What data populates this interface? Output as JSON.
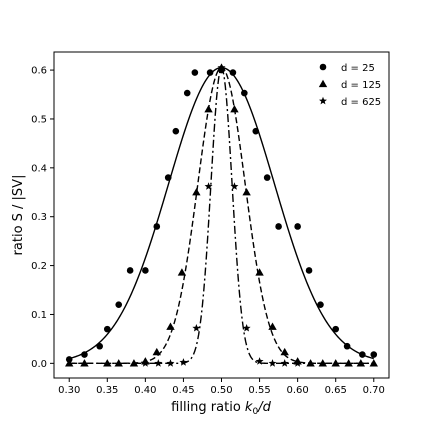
{
  "chart_data": {
    "type": "scatter",
    "xlabel_prefix": "filling ratio ",
    "xlabel_var": "k",
    "xlabel_sub": "0",
    "xlabel_suffix": "/d",
    "ylabel": "ratio S / |SV|",
    "xlim": [
      0.28,
      0.72
    ],
    "ylim": [
      -0.03,
      0.637
    ],
    "x_ticks": [
      0.3,
      0.35,
      0.4,
      0.45,
      0.5,
      0.55,
      0.6,
      0.65,
      0.7
    ],
    "x_tick_labels": [
      "0.30",
      "0.35",
      "0.40",
      "0.45",
      "0.50",
      "0.55",
      "0.60",
      "0.65",
      "0.70"
    ],
    "y_ticks": [
      0.0,
      0.1,
      0.2,
      0.3,
      0.4,
      0.5,
      0.6
    ],
    "y_tick_labels": [
      "0.0",
      "0.1",
      "0.2",
      "0.3",
      "0.4",
      "0.5",
      "0.6"
    ],
    "grid": false,
    "legend_position": "top-right",
    "series": [
      {
        "name": "d = 25",
        "marker": "circle",
        "line_style": "solid",
        "curve_center": 0.5,
        "curve_peak": 0.605,
        "curve_sigma": 0.0696,
        "x": [
          0.3,
          0.32,
          0.34,
          0.35,
          0.365,
          0.38,
          0.4,
          0.415,
          0.43,
          0.44,
          0.455,
          0.465,
          0.485,
          0.5,
          0.515,
          0.53,
          0.545,
          0.56,
          0.575,
          0.6,
          0.615,
          0.63,
          0.65,
          0.665,
          0.685,
          0.7
        ],
        "y": [
          0.008,
          0.018,
          0.035,
          0.07,
          0.12,
          0.19,
          0.19,
          0.28,
          0.38,
          0.475,
          0.553,
          0.595,
          0.595,
          0.6,
          0.595,
          0.553,
          0.475,
          0.38,
          0.28,
          0.28,
          0.19,
          0.12,
          0.07,
          0.035,
          0.018,
          0.018
        ]
      },
      {
        "name": "d = 125",
        "marker": "triangle",
        "line_style": "dashed",
        "curve_center": 0.5,
        "curve_peak": 0.605,
        "curve_sigma": 0.0311,
        "x": [
          0.3,
          0.32,
          0.35,
          0.365,
          0.385,
          0.4,
          0.415,
          0.433,
          0.448,
          0.467,
          0.483,
          0.5,
          0.517,
          0.533,
          0.55,
          0.567,
          0.583,
          0.6,
          0.617,
          0.633,
          0.65,
          0.667,
          0.683,
          0.7
        ],
        "y": [
          0.0,
          0.0,
          0.0,
          0.0,
          0.0,
          0.004,
          0.023,
          0.075,
          0.186,
          0.35,
          0.52,
          0.605,
          0.52,
          0.35,
          0.186,
          0.075,
          0.023,
          0.004,
          0.0,
          0.0,
          0.0,
          0.0,
          0.0,
          0.0
        ]
      },
      {
        "name": "d = 625",
        "marker": "star",
        "line_style": "dashdot",
        "curve_center": 0.5,
        "curve_peak": 0.605,
        "curve_sigma": 0.0139,
        "x": [
          0.4,
          0.417,
          0.433,
          0.45,
          0.467,
          0.483,
          0.5,
          0.517,
          0.533,
          0.55,
          0.567,
          0.583,
          0.6
        ],
        "y": [
          0.0,
          0.0,
          0.0,
          0.002,
          0.072,
          0.362,
          0.605,
          0.362,
          0.072,
          0.004,
          0.0,
          0.0,
          0.0
        ]
      }
    ]
  }
}
